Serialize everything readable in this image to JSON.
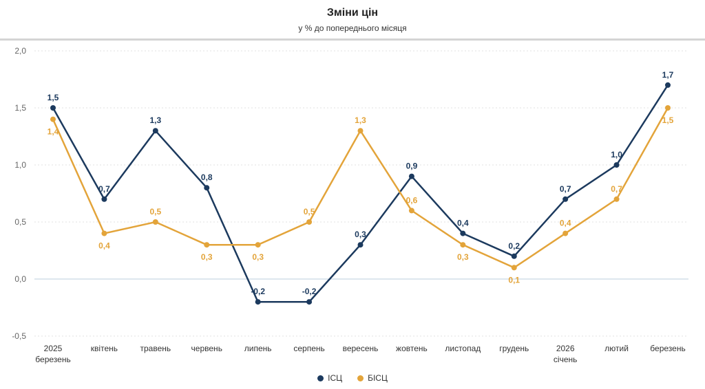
{
  "chart_data": {
    "type": "line",
    "title": "Зміни цін",
    "subtitle": "у % до попереднього місяця",
    "categories": [
      [
        "2025",
        "березень"
      ],
      [
        "квітень"
      ],
      [
        "травень"
      ],
      [
        "червень"
      ],
      [
        "липень"
      ],
      [
        "серпень"
      ],
      [
        "вересень"
      ],
      [
        "жовтень"
      ],
      [
        "листопад"
      ],
      [
        "грудень"
      ],
      [
        "2026",
        "січень"
      ],
      [
        "лютий"
      ],
      [
        "березень"
      ]
    ],
    "ylim": [
      -0.5,
      2.0
    ],
    "yticks": [
      "-0,5",
      "0,0",
      "0,5",
      "1,0",
      "1,5",
      "2,0"
    ],
    "grid": true,
    "legend_position": "bottom-center",
    "series": [
      {
        "name": "ІСЦ",
        "color": "#1c3a5e",
        "values": [
          1.5,
          0.7,
          1.3,
          0.8,
          -0.2,
          -0.2,
          0.3,
          0.9,
          0.4,
          0.2,
          0.7,
          1.0,
          1.7
        ]
      },
      {
        "name": "БІСЦ",
        "color": "#e3a43a",
        "values": [
          1.4,
          0.4,
          0.5,
          0.3,
          0.3,
          0.5,
          1.3,
          0.6,
          0.3,
          0.1,
          0.4,
          0.7,
          1.5
        ]
      }
    ]
  }
}
